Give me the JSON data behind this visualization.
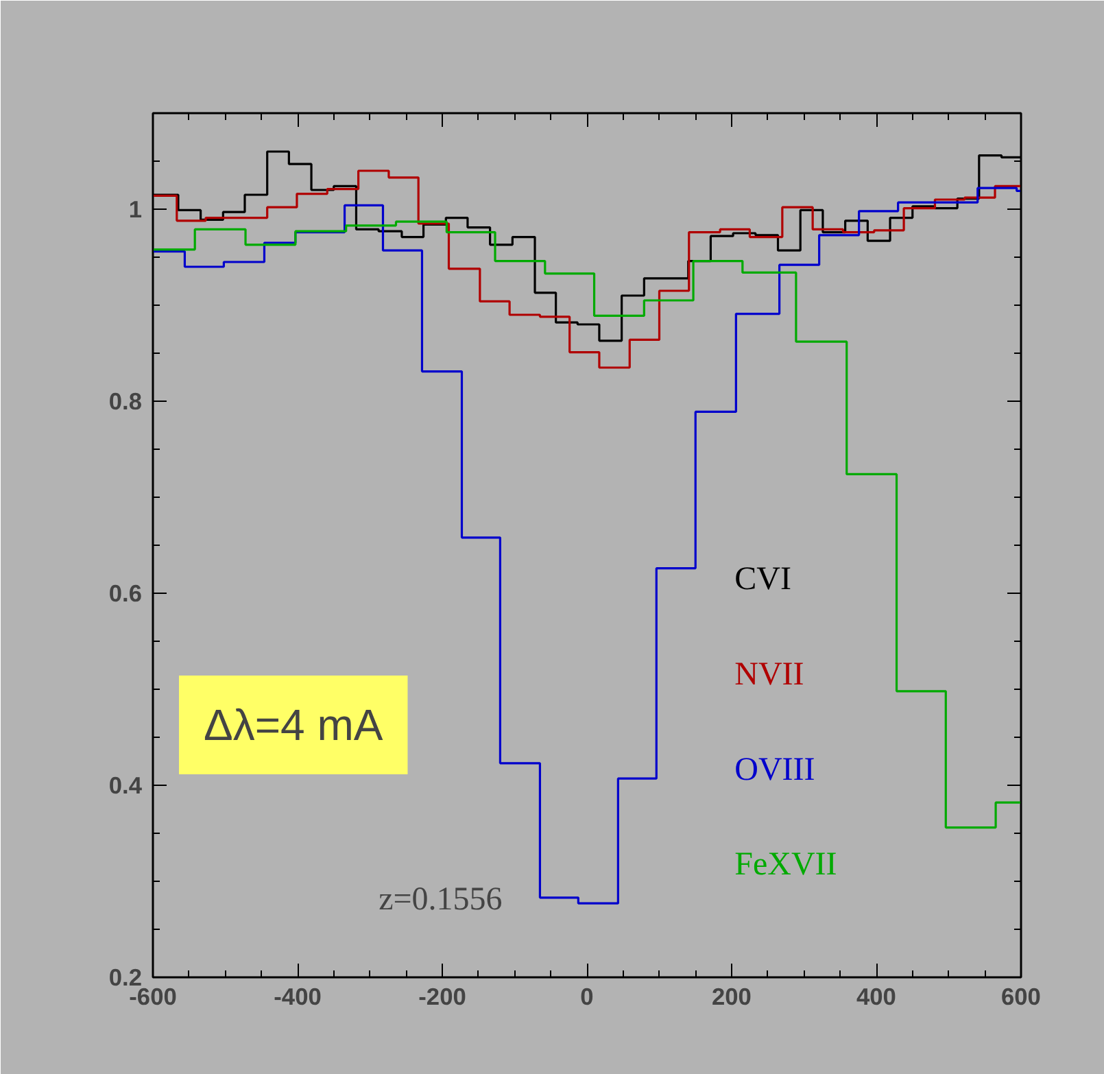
{
  "chart_data": {
    "type": "step",
    "xlim": [
      -600,
      600
    ],
    "ylim": [
      0.2,
      1.1
    ],
    "xticks": [
      -600,
      -400,
      -200,
      0,
      200,
      400,
      600
    ],
    "yticks": [
      {
        "value": 0.2,
        "label": "0.2"
      },
      {
        "value": 0.4,
        "label": "0.4"
      },
      {
        "value": 0.6,
        "label": "0.6"
      },
      {
        "value": 0.8,
        "label": "0.8"
      },
      1
    ],
    "grid": false,
    "annotations": [
      "Δλ=4 mA",
      "z=0.1556"
    ],
    "series": [
      {
        "name": "CVI",
        "color": "#000000",
        "x": [
          -600,
          -565,
          -534,
          -503,
          -473,
          -442,
          -412,
          -381,
          -350,
          -319,
          -288,
          -256,
          -226,
          -195,
          -165,
          -134,
          -103,
          -72,
          -43,
          -13,
          17,
          48,
          79,
          140,
          171,
          202,
          233,
          264,
          295,
          326,
          357,
          388,
          419,
          450,
          481,
          512,
          542,
          573,
          600
        ],
        "values": [
          1.015,
          0.999,
          0.989,
          0.997,
          1.015,
          1.06,
          1.047,
          1.02,
          1.024,
          0.979,
          0.977,
          0.971,
          0.984,
          0.991,
          0.981,
          0.963,
          0.971,
          0.913,
          0.882,
          0.88,
          0.863,
          0.91,
          0.928,
          0.946,
          0.972,
          0.975,
          0.973,
          0.957,
          0.999,
          0.976,
          0.988,
          0.967,
          0.991,
          1.003,
          1.001,
          1.011,
          1.056,
          1.054,
          1.054
        ]
      },
      {
        "name": "NVII",
        "color": "#b00000",
        "x": [
          -600,
          -567,
          -527,
          -442,
          -401,
          -359,
          -316,
          -274,
          -233,
          -191,
          -148,
          -107,
          -65,
          -24,
          17,
          59,
          100,
          141,
          184,
          225,
          270,
          312,
          354,
          397,
          438,
          481,
          522,
          564,
          600
        ],
        "values": [
          1.014,
          0.988,
          0.991,
          1.002,
          1.016,
          1.021,
          1.04,
          1.033,
          0.985,
          0.938,
          0.904,
          0.89,
          0.888,
          0.851,
          0.835,
          0.864,
          0.915,
          0.976,
          0.979,
          0.971,
          1.002,
          0.979,
          0.976,
          0.978,
          1.001,
          1.01,
          1.012,
          1.024,
          1.024
        ]
      },
      {
        "name": "OVIII",
        "color": "#0000cc",
        "x": [
          -600,
          -556,
          -502,
          -446,
          -403,
          -335,
          -282,
          -228,
          -173,
          -120,
          -65,
          -12,
          43,
          96,
          150,
          206,
          266,
          321,
          376,
          430,
          540,
          594,
          600
        ],
        "values": [
          0.956,
          0.94,
          0.945,
          0.965,
          0.976,
          1.004,
          0.957,
          0.831,
          0.658,
          0.423,
          0.283,
          0.277,
          0.407,
          0.626,
          0.789,
          0.891,
          0.942,
          0.973,
          0.998,
          1.007,
          1.022,
          1.019,
          1.019
        ]
      },
      {
        "name": "FeXVII",
        "color": "#00aa00",
        "x": [
          -600,
          -542,
          -472,
          -403,
          -333,
          -264,
          -194,
          -127,
          -58,
          10,
          79,
          147,
          215,
          289,
          359,
          428,
          496,
          565,
          600
        ],
        "values": [
          0.958,
          0.979,
          0.963,
          0.977,
          0.983,
          0.987,
          0.976,
          0.946,
          0.933,
          0.889,
          0.905,
          0.946,
          0.934,
          0.862,
          0.724,
          0.498,
          0.356,
          0.382,
          0.382
        ]
      }
    ]
  }
}
